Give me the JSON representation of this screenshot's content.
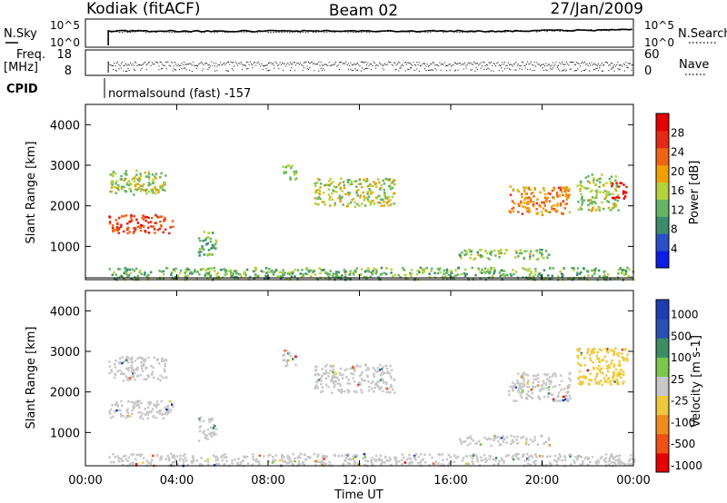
{
  "header": {
    "site": "Kodiak (fitACF)",
    "beam": "Beam 02",
    "date": "27/Jan/2009"
  },
  "top_panels": {
    "nsky_label": "N.Sky",
    "nsky_ticks": [
      "10^5",
      "10^0"
    ],
    "nsearch_label": "N.Search",
    "nsearch_ticks": [
      "10^5",
      "10^0"
    ],
    "freq_label": "Freq.",
    "freq_unit": "[MHz]",
    "freq_ticks": [
      "18",
      "8"
    ],
    "nave_label": "Nave",
    "nave_ticks": [
      "60",
      "0"
    ],
    "cpid_label": "CPID",
    "cpid_text": "normalsound (fast) -157"
  },
  "colors": {
    "power": [
      "#0a1ee6",
      "#2850c8",
      "#3c8c6e",
      "#64b464",
      "#b4d23c",
      "#f0a000",
      "#f06414",
      "#e62814",
      "#e60000"
    ],
    "velocity": [
      "#e60000",
      "#f05014",
      "#f08c1e",
      "#f0c83c",
      "#c8c8c8",
      "#78c84c",
      "#3c8c64",
      "#2850b4",
      "#1e3cb4"
    ]
  },
  "chart_data": [
    {
      "type": "heatmap",
      "title": "Power",
      "xlabel": "Time UT",
      "ylabel": "Slant Range [km]",
      "x_ticks": [
        "00:00",
        "04:00",
        "08:00",
        "12:00",
        "16:00",
        "20:00",
        "00:00"
      ],
      "y_ticks": [
        "1000",
        "2000",
        "3000",
        "4000"
      ],
      "xlim_hours": [
        0,
        24
      ],
      "ylim_km": [
        180,
        4500
      ],
      "colorbar": {
        "label": "Power [dB]",
        "ticks": [
          "4",
          "8",
          "12",
          "16",
          "20",
          "24",
          "28"
        ],
        "range": [
          0,
          30
        ]
      },
      "regions": [
        {
          "t0": 1.0,
          "t1": 3.8,
          "r0": 1350,
          "r1": 1800,
          "value": 24
        },
        {
          "t0": 1.0,
          "t1": 3.5,
          "r0": 2300,
          "r1": 2900,
          "value": 14
        },
        {
          "t0": 10.0,
          "t1": 13.5,
          "r0": 2000,
          "r1": 2700,
          "value": 15
        },
        {
          "t0": 8.6,
          "t1": 9.2,
          "r0": 2650,
          "r1": 3050,
          "value": 14
        },
        {
          "t0": 4.9,
          "t1": 5.7,
          "r0": 800,
          "r1": 1400,
          "value": 11
        },
        {
          "t0": 18.5,
          "t1": 21.2,
          "r0": 1800,
          "r1": 2500,
          "value": 20
        },
        {
          "t0": 21.5,
          "t1": 23.3,
          "r0": 1900,
          "r1": 2800,
          "value": 14
        },
        {
          "t0": 23.0,
          "t1": 23.7,
          "r0": 2200,
          "r1": 2600,
          "value": 28
        },
        {
          "t0": 16.3,
          "t1": 20.3,
          "r0": 700,
          "r1": 950,
          "value": 13
        },
        {
          "t0": 1.0,
          "t1": 24.0,
          "r0": 200,
          "r1": 500,
          "value": 12
        }
      ]
    },
    {
      "type": "heatmap",
      "title": "Velocity",
      "xlabel": "Time UT",
      "ylabel": "Slant Range [km]",
      "x_ticks": [
        "00:00",
        "04:00",
        "08:00",
        "12:00",
        "16:00",
        "20:00",
        "00:00"
      ],
      "y_ticks": [
        "1000",
        "2000",
        "3000",
        "4000"
      ],
      "xlim_hours": [
        0,
        24
      ],
      "ylim_km": [
        180,
        4500
      ],
      "colorbar": {
        "label": "Velocity [m s-1]",
        "ticks": [
          "1000",
          "500",
          "100",
          "25",
          "-25",
          "-100",
          "-500",
          "-1000"
        ],
        "range": [
          -1000,
          1000
        ]
      },
      "regions": [
        {
          "t0": 1.0,
          "t1": 3.8,
          "r0": 1350,
          "r1": 1800,
          "value": 0
        },
        {
          "t0": 1.0,
          "t1": 3.5,
          "r0": 2300,
          "r1": 2900,
          "value": 0
        },
        {
          "t0": 10.0,
          "t1": 13.5,
          "r0": 2000,
          "r1": 2700,
          "value": 0
        },
        {
          "t0": 8.6,
          "t1": 9.2,
          "r0": 2650,
          "r1": 3050,
          "value": 0
        },
        {
          "t0": 4.9,
          "t1": 5.7,
          "r0": 800,
          "r1": 1400,
          "value": 0
        },
        {
          "t0": 18.5,
          "t1": 21.2,
          "r0": 1800,
          "r1": 2500,
          "value": 0
        },
        {
          "t0": 21.5,
          "t1": 23.7,
          "r0": 2200,
          "r1": 3100,
          "value": -300
        },
        {
          "t0": 16.3,
          "t1": 20.3,
          "r0": 700,
          "r1": 950,
          "value": -60
        },
        {
          "t0": 1.0,
          "t1": 24.0,
          "r0": 200,
          "r1": 500,
          "value": 40
        }
      ]
    }
  ]
}
